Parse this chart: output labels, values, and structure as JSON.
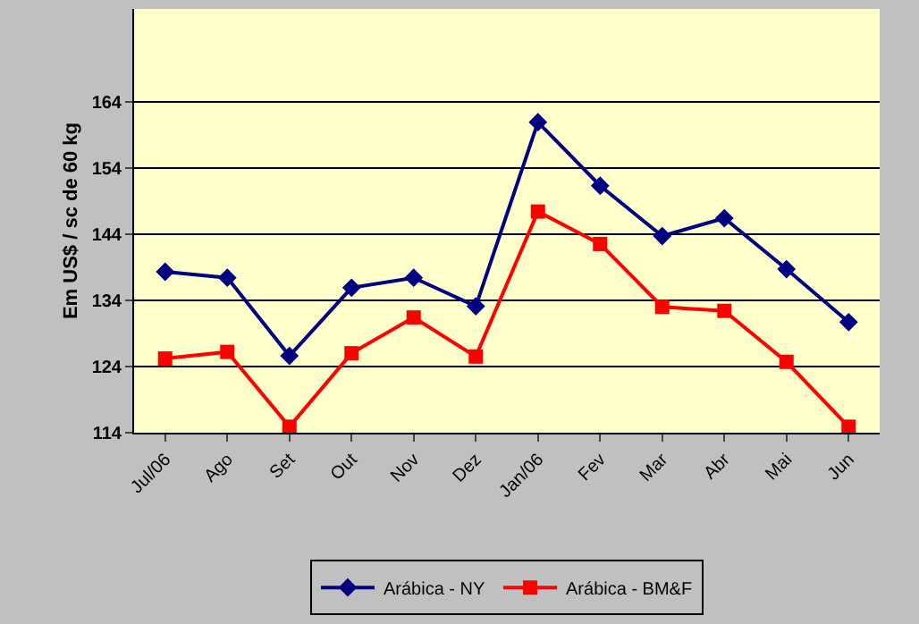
{
  "chart_data": {
    "type": "line",
    "ylabel": "Em US$ / sc de 60 kg",
    "categories": [
      "Jul/06",
      "Ago",
      "Set",
      "Out",
      "Nov",
      "Dez",
      "Jan/06",
      "Fev",
      "Mar",
      "Abr",
      "Mai",
      "Jun"
    ],
    "series": [
      {
        "name": "Arábica - NY",
        "color": "#000080",
        "marker": "diamond",
        "values": [
          138.3,
          137.4,
          125.6,
          135.9,
          137.4,
          133.1,
          160.9,
          151.3,
          143.7,
          146.4,
          138.7,
          130.7
        ]
      },
      {
        "name": "Arábica - BM&F",
        "color": "#ff0000",
        "marker": "square",
        "values": [
          125.2,
          126.2,
          114.9,
          126.0,
          131.4,
          125.5,
          147.4,
          142.5,
          133.0,
          132.4,
          124.7,
          114.9
        ]
      }
    ],
    "ylim": [
      114,
      178
    ],
    "yticks": [
      114,
      124,
      134,
      144,
      154,
      164
    ],
    "grid": "y",
    "legend": "bottom",
    "line_style": "solid"
  }
}
